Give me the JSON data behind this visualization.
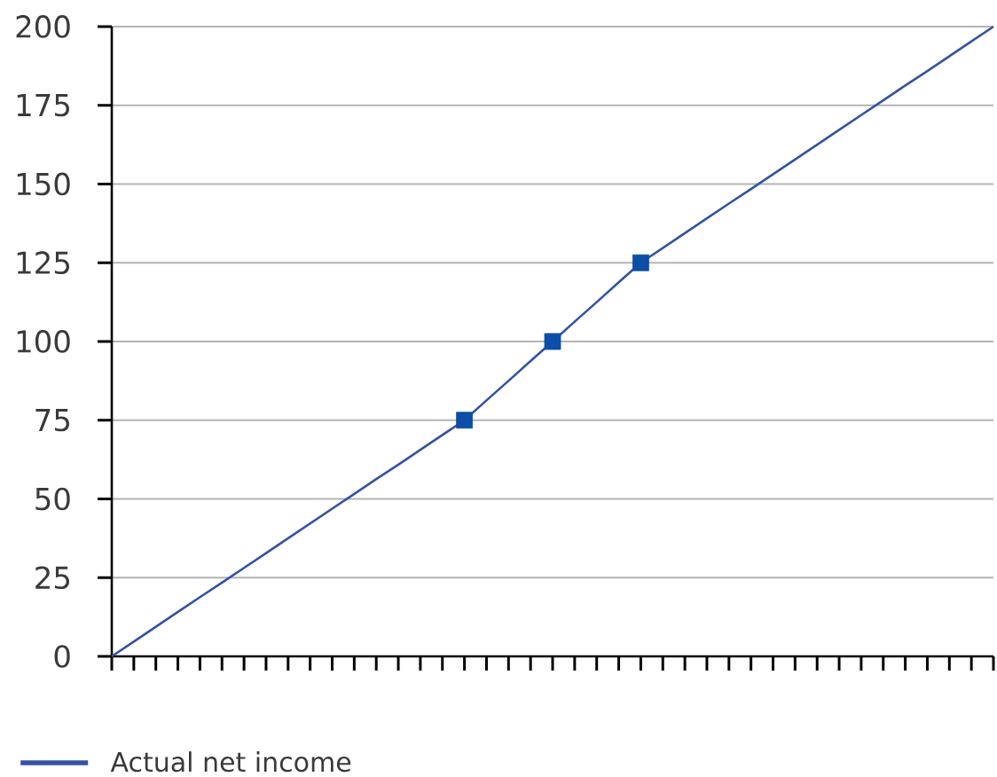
{
  "chart_data": {
    "type": "line",
    "categories": [
      null,
      null,
      null,
      null,
      null,
      null,
      null,
      null,
      null,
      null,
      null,
      null,
      null,
      null,
      null,
      null,
      null,
      null,
      null,
      null,
      null,
      null,
      null,
      null,
      null,
      null,
      null,
      null,
      null,
      null,
      null,
      null,
      null,
      null,
      null,
      null,
      null,
      null,
      null,
      null,
      null
    ],
    "series": [
      {
        "name": "Actual net income",
        "color": "#3452a4",
        "marker": "none",
        "values": [
          0,
          4.7,
          9.4,
          14.1,
          18.8,
          23.4,
          28.1,
          32.8,
          37.5,
          42.2,
          46.9,
          51.6,
          56.3,
          60.9,
          65.6,
          70.3,
          75,
          81.3,
          87.5,
          93.8,
          100,
          106.3,
          112.5,
          118.8,
          125,
          129.7,
          134.4,
          139.1,
          143.8,
          148.4,
          153.1,
          157.8,
          162.5,
          167.2,
          171.9,
          176.6,
          181.3,
          185.9,
          190.6,
          195.3,
          200
        ]
      },
      {
        "type": "scatter",
        "color": "#0d4ea6",
        "marker": "square",
        "values": [
          null,
          null,
          null,
          null,
          null,
          null,
          null,
          null,
          null,
          null,
          null,
          null,
          null,
          null,
          null,
          null,
          75,
          null,
          null,
          null,
          100,
          null,
          null,
          null,
          125,
          null,
          null,
          null,
          null,
          null,
          null,
          null,
          null,
          null,
          null,
          null,
          null,
          null,
          null,
          null,
          null
        ]
      }
    ],
    "ylim": [
      0,
      200
    ],
    "yticks": [
      0,
      25,
      50,
      75,
      100,
      125,
      150,
      175,
      200
    ],
    "grid": "y",
    "legend": "bottom left",
    "tick_labels": "y",
    "line_style": "solid"
  }
}
